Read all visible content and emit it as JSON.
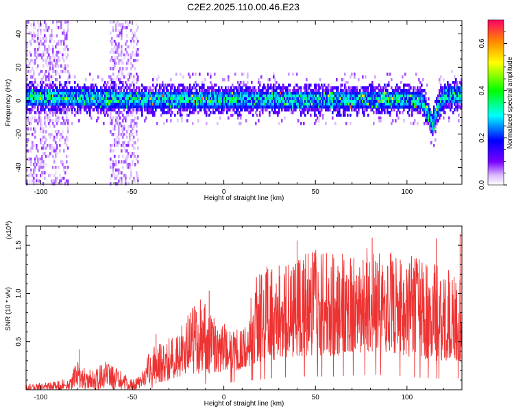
{
  "figure": {
    "title": "C2E2.2025.110.00.46.E23"
  },
  "chart_data": [
    {
      "type": "heatmap",
      "title": "C2E2.2025.110.00.46.E23",
      "xlabel": "Height of straight line (km)",
      "ylabel": "Frequency (Hz)",
      "xlim": [
        -108,
        130
      ],
      "ylim": [
        -50,
        48
      ],
      "x_ticks": [
        -100,
        -50,
        0,
        50,
        100
      ],
      "x_tick_labels": [
        "-100",
        "-50",
        "0",
        "50",
        "100"
      ],
      "y_ticks": [
        -40,
        -20,
        0,
        20,
        40
      ],
      "y_tick_labels": [
        "-40",
        "-20",
        "0",
        "20",
        "40"
      ],
      "colorbar": {
        "label": "Normalized spectral amplitude",
        "range": [
          0,
          0.7
        ],
        "ticks": [
          0.0,
          0.2,
          0.4,
          0.6
        ],
        "tick_labels": [
          "0.0",
          "0.2",
          "0.4",
          "0.6"
        ],
        "colormap": "rainbow (white-violet-blue-cyan-green-yellow-red)"
      },
      "band": {
        "center_hz": [
          [
            -108,
            2
          ],
          [
            -50,
            1
          ],
          [
            0,
            1
          ],
          [
            50,
            1
          ],
          [
            100,
            1
          ],
          [
            108,
            0
          ],
          [
            111,
            -6
          ],
          [
            114,
            -14
          ],
          [
            117,
            -4
          ],
          [
            121,
            3
          ],
          [
            130,
            3
          ]
        ],
        "core_halfwidth_hz": 5,
        "envelope_halfwidth_hz": 10,
        "typical_amplitude": 0.35,
        "max_amplitude": 0.7,
        "noise_regions_km": [
          [
            -108,
            -85
          ],
          [
            -62,
            -47
          ]
        ]
      }
    },
    {
      "type": "line",
      "xlabel": "Height of straight line (km)",
      "ylabel": "SNR (10 * v/v)",
      "y_scale_label": "(x10",
      "y_scale_exp": "4",
      "y_scale_close": ")",
      "xlim": [
        -108,
        130
      ],
      "ylim": [
        0,
        1.7
      ],
      "x_ticks": [
        -100,
        -50,
        0,
        50,
        100
      ],
      "x_tick_labels": [
        "-100",
        "-50",
        "0",
        "50",
        "100"
      ],
      "y_ticks": [
        0.5,
        1.0,
        1.5
      ],
      "y_tick_labels": [
        "0.5",
        "1.0",
        "1.5"
      ],
      "color": "#ee3333",
      "envelope": {
        "x": [
          -108,
          -95,
          -85,
          -80,
          -75,
          -65,
          -55,
          -50,
          -45,
          -40,
          -35,
          -25,
          -20,
          -12,
          -5,
          5,
          13,
          15,
          25,
          40,
          60,
          80,
          100,
          112,
          120,
          130
        ],
        "peak": [
          0.06,
          0.08,
          0.12,
          0.3,
          0.2,
          0.3,
          0.18,
          0.1,
          0.2,
          0.45,
          0.5,
          0.6,
          0.8,
          0.95,
          0.8,
          0.6,
          0.7,
          1.2,
          1.3,
          1.45,
          1.45,
          1.5,
          1.4,
          1.35,
          1.25,
          1.25
        ],
        "base": [
          0.0,
          0.0,
          0.0,
          0.02,
          0.02,
          0.02,
          0.01,
          0.0,
          0.02,
          0.05,
          0.08,
          0.12,
          0.15,
          0.15,
          0.18,
          0.2,
          0.2,
          0.25,
          0.3,
          0.35,
          0.35,
          0.4,
          0.35,
          0.3,
          0.3,
          0.3
        ]
      },
      "spikes": [
        {
          "x": -79,
          "y": 0.42
        },
        {
          "x": -37,
          "y": 0.58
        },
        {
          "x": -8,
          "y": 1.03
        },
        {
          "x": 40,
          "y": 1.55
        },
        {
          "x": 81,
          "y": 1.58
        },
        {
          "x": 116,
          "y": 1.57
        },
        {
          "x": 129,
          "y": 1.62
        }
      ]
    }
  ]
}
